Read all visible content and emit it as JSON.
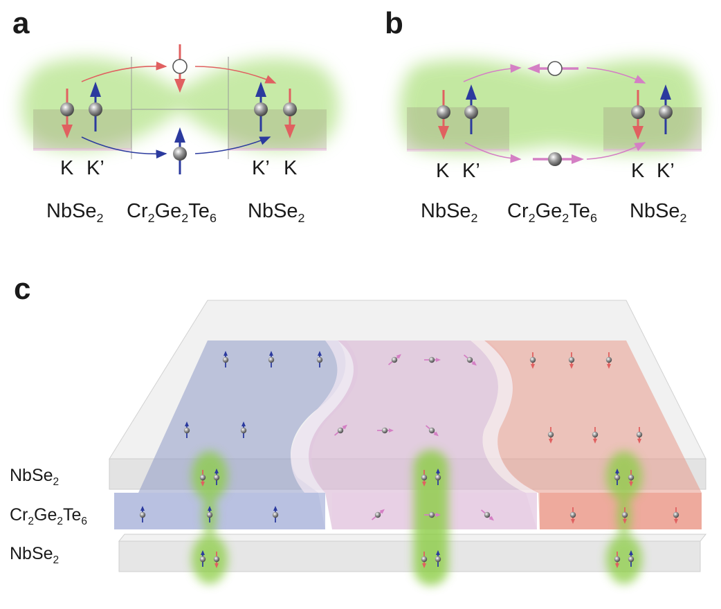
{
  "panels": {
    "a": {
      "letter": "a",
      "valley_left": [
        "K",
        "K’"
      ],
      "valley_right": [
        "K’",
        "K"
      ],
      "materials": [
        {
          "base": "NbSe",
          "sub": "2"
        },
        {
          "parts": [
            [
              "Cr",
              "2"
            ],
            [
              "Ge",
              "2"
            ],
            [
              "Te",
              "6"
            ]
          ]
        },
        {
          "base": "NbSe",
          "sub": "2"
        }
      ]
    },
    "b": {
      "letter": "b",
      "valley_left": [
        "K",
        "K’"
      ],
      "valley_right": [
        "K",
        "K’"
      ],
      "materials": [
        {
          "base": "NbSe",
          "sub": "2"
        },
        {
          "parts": [
            [
              "Cr",
              "2"
            ],
            [
              "Ge",
              "2"
            ],
            [
              "Te",
              "6"
            ]
          ]
        },
        {
          "base": "NbSe",
          "sub": "2"
        }
      ]
    },
    "c": {
      "letter": "c",
      "layers": [
        {
          "base": "NbSe",
          "sub": "2"
        },
        {
          "parts": [
            [
              "Cr",
              "2"
            ],
            [
              "Ge",
              "2"
            ],
            [
              "Te",
              "6"
            ]
          ]
        },
        {
          "base": "NbSe",
          "sub": "2"
        }
      ]
    }
  },
  "colors": {
    "spin_up": "#2b3a9e",
    "spin_down": "#e06060",
    "spin_inplane": "#d47fc4",
    "glow": "#b5e38a",
    "region_blue": "#8f9ac6",
    "region_pink": "#d8b6d4",
    "region_red": "#e79a8c",
    "slab": "#e4e4e4"
  }
}
